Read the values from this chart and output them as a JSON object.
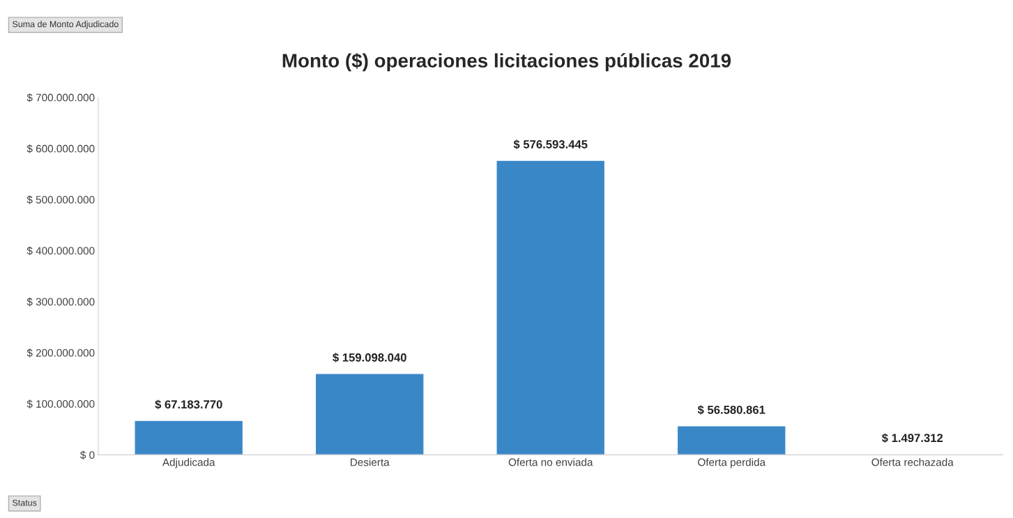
{
  "chart_data": {
    "type": "bar",
    "title": "Monto ($) operaciones licitaciones públicas 2019",
    "categories": [
      "Adjudicada",
      "Desierta",
      "Oferta no enviada",
      "Oferta perdida",
      "Oferta rechazada"
    ],
    "values": [
      67183770,
      159098040,
      576593445,
      56580861,
      1497312
    ],
    "color": "#3a87c8",
    "value_labels": [
      "$ 67.183.770",
      "$ 159.098.040",
      "$ 576.593.445",
      "$ 56.580.861",
      "$ 1.497.312"
    ],
    "ylim": [
      0,
      700000000
    ],
    "yticks": [
      {
        "value": 0,
        "label": "$ 0"
      },
      {
        "value": 100000000,
        "label": "$ 100.000.000"
      },
      {
        "value": 200000000,
        "label": "$ 200.000.000"
      },
      {
        "value": 300000000,
        "label": "$ 300.000.000"
      },
      {
        "value": 400000000,
        "label": "$ 400.000.000"
      },
      {
        "value": 500000000,
        "label": "$ 500.000.000"
      },
      {
        "value": 600000000,
        "label": "$ 600.000.000"
      },
      {
        "value": 700000000,
        "label": "$ 700.000.000"
      }
    ],
    "annotations": [
      "Suma de Monto Adjudicado",
      "Status"
    ],
    "grid": false,
    "legend": false
  }
}
